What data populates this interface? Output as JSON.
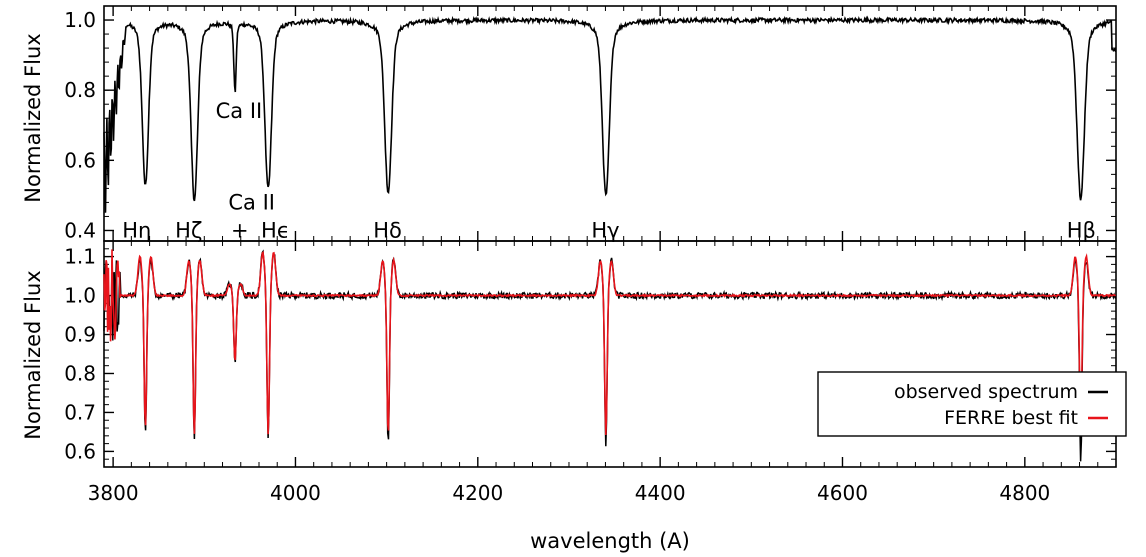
{
  "chart_data": [
    {
      "type": "line",
      "panel": "top",
      "xlabel": "",
      "ylabel": "Normalized Flux",
      "xlim": [
        3790,
        4900
      ],
      "ylim": [
        0.37,
        1.04
      ],
      "yticks": [
        0.4,
        0.6,
        0.8,
        1.0
      ],
      "ytick_labels": [
        "0.4",
        "0.6",
        "0.8",
        "1.0"
      ],
      "series": [
        {
          "color": "#000000",
          "continuum": 1.0,
          "absorption_lines": [
            {
              "wavelength": 3835.4,
              "min_flux": 0.53,
              "width": 3.2
            },
            {
              "wavelength": 3889.1,
              "min_flux": 0.49,
              "width": 3.4
            },
            {
              "wavelength": 3933.7,
              "min_flux": 0.8,
              "width": 1.2
            },
            {
              "wavelength": 3970.1,
              "min_flux": 0.52,
              "width": 3.4
            },
            {
              "wavelength": 4101.7,
              "min_flux": 0.51,
              "width": 3.6
            },
            {
              "wavelength": 4340.5,
              "min_flux": 0.5,
              "width": 3.6
            },
            {
              "wavelength": 4861.3,
              "min_flux": 0.49,
              "width": 3.8
            }
          ]
        }
      ],
      "annotations": [
        {
          "text": "Hη",
          "x": 3826,
          "y": 0.4
        },
        {
          "text": "Hζ",
          "x": 3883,
          "y": 0.4
        },
        {
          "text": "+",
          "x": 3939,
          "y": 0.4
        },
        {
          "text": "Hϵ",
          "x": 3978,
          "y": 0.4
        },
        {
          "text": "Ca  II",
          "x": 3952,
          "y": 0.48
        },
        {
          "text": "Ca  II",
          "x": 3938,
          "y": 0.74
        },
        {
          "text": "Hδ",
          "x": 4101,
          "y": 0.4
        },
        {
          "text": "Hγ",
          "x": 4340,
          "y": 0.4
        },
        {
          "text": "Hβ",
          "x": 4862,
          "y": 0.4
        }
      ]
    },
    {
      "type": "line",
      "panel": "bottom",
      "xlabel": "wavelength (A)",
      "ylabel": "Normalized Flux",
      "xlim": [
        3790,
        4900
      ],
      "ylim": [
        0.56,
        1.14
      ],
      "xticks": [
        3800,
        4000,
        4200,
        4400,
        4600,
        4800
      ],
      "xtick_labels": [
        "3800",
        "4000",
        "4200",
        "4400",
        "4600",
        "4800"
      ],
      "yticks": [
        0.6,
        0.7,
        0.8,
        0.9,
        1.0,
        1.1
      ],
      "ytick_labels": [
        "0.6",
        "0.7",
        "0.8",
        "0.9",
        "1.0",
        "1.1"
      ],
      "legend": {
        "position": "bottom-right"
      },
      "series": [
        {
          "name": "observed spectrum",
          "color": "#000000",
          "continuum": 1.0,
          "features": [
            {
              "wavelength": 3835.4,
              "min_flux": 0.64,
              "peak_flux": 1.09
            },
            {
              "wavelength": 3889.1,
              "min_flux": 0.63,
              "peak_flux": 1.09
            },
            {
              "wavelength": 3933.7,
              "min_flux": 0.83,
              "peak_flux": 1.03
            },
            {
              "wavelength": 3970.1,
              "min_flux": 0.63,
              "peak_flux": 1.11
            },
            {
              "wavelength": 4101.7,
              "min_flux": 0.62,
              "peak_flux": 1.09
            },
            {
              "wavelength": 4340.5,
              "min_flux": 0.61,
              "peak_flux": 1.09
            },
            {
              "wavelength": 4861.3,
              "min_flux": 0.57,
              "peak_flux": 1.09
            }
          ]
        },
        {
          "name": "FERRE best fit",
          "color": "#e8141b",
          "continuum": 1.0,
          "features": [
            {
              "wavelength": 3835.4,
              "min_flux": 0.66,
              "peak_flux": 1.1
            },
            {
              "wavelength": 3889.1,
              "min_flux": 0.64,
              "peak_flux": 1.09
            },
            {
              "wavelength": 3933.7,
              "min_flux": 0.83,
              "peak_flux": 1.03
            },
            {
              "wavelength": 3970.1,
              "min_flux": 0.64,
              "peak_flux": 1.11
            },
            {
              "wavelength": 4101.7,
              "min_flux": 0.64,
              "peak_flux": 1.09
            },
            {
              "wavelength": 4340.5,
              "min_flux": 0.64,
              "peak_flux": 1.09
            },
            {
              "wavelength": 4861.3,
              "min_flux": 0.66,
              "peak_flux": 1.1
            }
          ]
        }
      ]
    }
  ]
}
